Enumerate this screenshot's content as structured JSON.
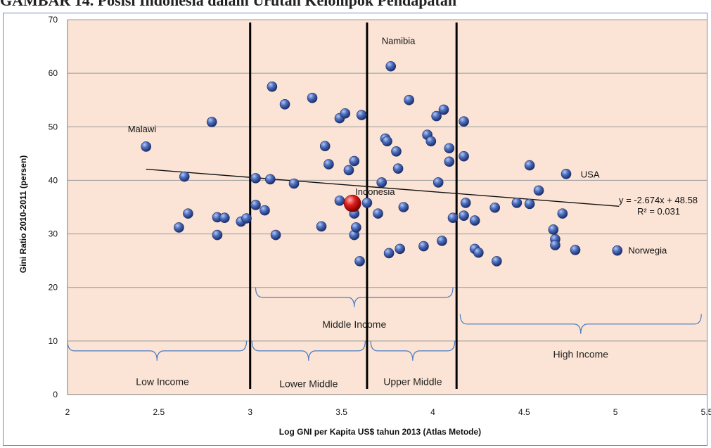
{
  "page_title": "GAMBAR 14. Posisi Indonesia dalam Urutan Kelompok Pendapatan",
  "chart_data": {
    "type": "scatter",
    "title": "",
    "xlabel": "Log GNI  per Kapita  US$  tahun 2013 (Atlas Metode)",
    "ylabel": "Gini Ratio 2010-2011  (persen)",
    "xlim": [
      2,
      5.5
    ],
    "ylim": [
      0,
      70
    ],
    "x_ticks": [
      "2",
      "2.5",
      "3",
      "3.5",
      "4",
      "4.5",
      "5",
      "5.5"
    ],
    "y_ticks": [
      "0",
      "10",
      "20",
      "30",
      "40",
      "50",
      "60",
      "70"
    ],
    "grid": "horizontal",
    "colors": {
      "plot_bg": "#fbe4d5",
      "point": "#3a5ba8",
      "highlight": "#e02020",
      "bracket": "#4a7cc0",
      "divider": "#000000"
    },
    "dividers_x": [
      3.0,
      3.64,
      4.13
    ],
    "trendline": {
      "slope": -2.674,
      "intercept": 48.58,
      "x_range": [
        2.43,
        5.02
      ],
      "equation": "y = -2.674x + 48.58",
      "r2": "R² = 0.031"
    },
    "points": [
      [
        2.43,
        46.3
      ],
      [
        2.61,
        31.2
      ],
      [
        2.64,
        40.7
      ],
      [
        2.66,
        33.8
      ],
      [
        2.79,
        50.9
      ],
      [
        2.82,
        33.1
      ],
      [
        2.82,
        29.8
      ],
      [
        2.86,
        33.0
      ],
      [
        2.95,
        32.3
      ],
      [
        2.98,
        32.9
      ],
      [
        3.03,
        40.4
      ],
      [
        3.03,
        35.4
      ],
      [
        3.08,
        34.4
      ],
      [
        3.11,
        40.2
      ],
      [
        3.12,
        57.5
      ],
      [
        3.14,
        29.8
      ],
      [
        3.19,
        54.2
      ],
      [
        3.24,
        39.4
      ],
      [
        3.34,
        55.4
      ],
      [
        3.39,
        31.4
      ],
      [
        3.41,
        46.4
      ],
      [
        3.43,
        43.0
      ],
      [
        3.49,
        51.6
      ],
      [
        3.52,
        52.5
      ],
      [
        3.54,
        41.9
      ],
      [
        3.49,
        36.2
      ],
      [
        3.57,
        43.6
      ],
      [
        3.57,
        33.8
      ],
      [
        3.57,
        29.8
      ],
      [
        3.58,
        31.2
      ],
      [
        3.6,
        24.9
      ],
      [
        3.61,
        52.2
      ],
      [
        3.64,
        35.8
      ],
      [
        3.7,
        33.8
      ],
      [
        3.72,
        39.6
      ],
      [
        3.74,
        47.8
      ],
      [
        3.75,
        47.3
      ],
      [
        3.76,
        26.4
      ],
      [
        3.77,
        61.3
      ],
      [
        3.8,
        45.4
      ],
      [
        3.81,
        42.2
      ],
      [
        3.82,
        27.2
      ],
      [
        3.84,
        35.0
      ],
      [
        3.87,
        55.0
      ],
      [
        3.95,
        27.7
      ],
      [
        3.97,
        48.5
      ],
      [
        3.99,
        47.3
      ],
      [
        4.02,
        52.0
      ],
      [
        4.03,
        39.6
      ],
      [
        4.05,
        28.7
      ],
      [
        4.06,
        53.2
      ],
      [
        4.09,
        46.0
      ],
      [
        4.09,
        43.5
      ],
      [
        4.11,
        33.0
      ],
      [
        4.17,
        51.0
      ],
      [
        4.17,
        44.5
      ],
      [
        4.17,
        33.4
      ],
      [
        4.18,
        35.8
      ],
      [
        4.23,
        32.5
      ],
      [
        4.23,
        27.2
      ],
      [
        4.25,
        26.5
      ],
      [
        4.34,
        34.9
      ],
      [
        4.35,
        24.9
      ],
      [
        4.46,
        35.8
      ],
      [
        4.53,
        42.8
      ],
      [
        4.53,
        35.6
      ],
      [
        4.58,
        38.1
      ],
      [
        4.66,
        30.8
      ],
      [
        4.67,
        29.0
      ],
      [
        4.67,
        27.9
      ],
      [
        4.71,
        33.8
      ],
      [
        4.73,
        41.2
      ],
      [
        4.78,
        27.0
      ],
      [
        5.01,
        26.9
      ]
    ],
    "highlight_point": {
      "x": 3.56,
      "y": 35.7,
      "label": "Indonesia"
    },
    "annotations": [
      {
        "text": "Malawi",
        "x": 2.33,
        "y": 49.0
      },
      {
        "text": "Namibia",
        "x": 3.72,
        "y": 65.5
      },
      {
        "text": "USA",
        "x": 4.81,
        "y": 40.5
      },
      {
        "text": "Norwegia",
        "x": 5.07,
        "y": 26.3
      }
    ],
    "income_groups": [
      {
        "label": "Low Income",
        "x1": 2.0,
        "x2": 2.98,
        "bracket_y": 10,
        "label_x": 2.52,
        "label_y": 1.8
      },
      {
        "label": "Lower Middle",
        "x1": 3.01,
        "x2": 3.63,
        "bracket_y": 10,
        "label_x": 3.32,
        "label_y": 1.4
      },
      {
        "label": "Upper Middle",
        "x1": 3.66,
        "x2": 4.12,
        "bracket_y": 10,
        "label_x": 3.89,
        "label_y": 1.8
      },
      {
        "label": "Middle  Income",
        "x1": 3.03,
        "x2": 4.11,
        "bracket_y": 20,
        "label_x": 3.57,
        "label_y": 12.5
      },
      {
        "label": "High Income",
        "x1": 4.15,
        "x2": 5.47,
        "bracket_y": 15,
        "label_x": 4.81,
        "label_y": 6.9
      }
    ]
  }
}
